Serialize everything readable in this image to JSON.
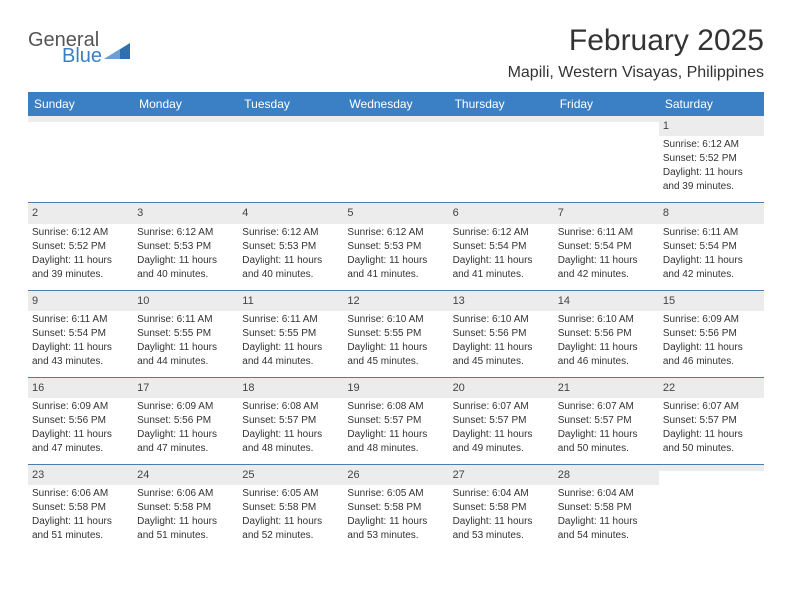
{
  "brand": {
    "line1": "General",
    "line2": "Blue",
    "logo_color": "#2f6fb0"
  },
  "header": {
    "month_title": "February 2025",
    "location": "Mapili, Western Visayas, Philippines"
  },
  "colors": {
    "header_bg": "#3b7fc4",
    "header_text": "#ffffff",
    "date_bar_bg": "#ececec",
    "sep": "#4a7db0",
    "text": "#333333"
  },
  "day_names": [
    "Sunday",
    "Monday",
    "Tuesday",
    "Wednesday",
    "Thursday",
    "Friday",
    "Saturday"
  ],
  "weeks": [
    [
      {
        "date": "",
        "sunrise": "",
        "sunset": "",
        "daylight_l1": "",
        "daylight_l2": ""
      },
      {
        "date": "",
        "sunrise": "",
        "sunset": "",
        "daylight_l1": "",
        "daylight_l2": ""
      },
      {
        "date": "",
        "sunrise": "",
        "sunset": "",
        "daylight_l1": "",
        "daylight_l2": ""
      },
      {
        "date": "",
        "sunrise": "",
        "sunset": "",
        "daylight_l1": "",
        "daylight_l2": ""
      },
      {
        "date": "",
        "sunrise": "",
        "sunset": "",
        "daylight_l1": "",
        "daylight_l2": ""
      },
      {
        "date": "",
        "sunrise": "",
        "sunset": "",
        "daylight_l1": "",
        "daylight_l2": ""
      },
      {
        "date": "1",
        "sunrise": "Sunrise: 6:12 AM",
        "sunset": "Sunset: 5:52 PM",
        "daylight_l1": "Daylight: 11 hours",
        "daylight_l2": "and 39 minutes."
      }
    ],
    [
      {
        "date": "2",
        "sunrise": "Sunrise: 6:12 AM",
        "sunset": "Sunset: 5:52 PM",
        "daylight_l1": "Daylight: 11 hours",
        "daylight_l2": "and 39 minutes."
      },
      {
        "date": "3",
        "sunrise": "Sunrise: 6:12 AM",
        "sunset": "Sunset: 5:53 PM",
        "daylight_l1": "Daylight: 11 hours",
        "daylight_l2": "and 40 minutes."
      },
      {
        "date": "4",
        "sunrise": "Sunrise: 6:12 AM",
        "sunset": "Sunset: 5:53 PM",
        "daylight_l1": "Daylight: 11 hours",
        "daylight_l2": "and 40 minutes."
      },
      {
        "date": "5",
        "sunrise": "Sunrise: 6:12 AM",
        "sunset": "Sunset: 5:53 PM",
        "daylight_l1": "Daylight: 11 hours",
        "daylight_l2": "and 41 minutes."
      },
      {
        "date": "6",
        "sunrise": "Sunrise: 6:12 AM",
        "sunset": "Sunset: 5:54 PM",
        "daylight_l1": "Daylight: 11 hours",
        "daylight_l2": "and 41 minutes."
      },
      {
        "date": "7",
        "sunrise": "Sunrise: 6:11 AM",
        "sunset": "Sunset: 5:54 PM",
        "daylight_l1": "Daylight: 11 hours",
        "daylight_l2": "and 42 minutes."
      },
      {
        "date": "8",
        "sunrise": "Sunrise: 6:11 AM",
        "sunset": "Sunset: 5:54 PM",
        "daylight_l1": "Daylight: 11 hours",
        "daylight_l2": "and 42 minutes."
      }
    ],
    [
      {
        "date": "9",
        "sunrise": "Sunrise: 6:11 AM",
        "sunset": "Sunset: 5:54 PM",
        "daylight_l1": "Daylight: 11 hours",
        "daylight_l2": "and 43 minutes."
      },
      {
        "date": "10",
        "sunrise": "Sunrise: 6:11 AM",
        "sunset": "Sunset: 5:55 PM",
        "daylight_l1": "Daylight: 11 hours",
        "daylight_l2": "and 44 minutes."
      },
      {
        "date": "11",
        "sunrise": "Sunrise: 6:11 AM",
        "sunset": "Sunset: 5:55 PM",
        "daylight_l1": "Daylight: 11 hours",
        "daylight_l2": "and 44 minutes."
      },
      {
        "date": "12",
        "sunrise": "Sunrise: 6:10 AM",
        "sunset": "Sunset: 5:55 PM",
        "daylight_l1": "Daylight: 11 hours",
        "daylight_l2": "and 45 minutes."
      },
      {
        "date": "13",
        "sunrise": "Sunrise: 6:10 AM",
        "sunset": "Sunset: 5:56 PM",
        "daylight_l1": "Daylight: 11 hours",
        "daylight_l2": "and 45 minutes."
      },
      {
        "date": "14",
        "sunrise": "Sunrise: 6:10 AM",
        "sunset": "Sunset: 5:56 PM",
        "daylight_l1": "Daylight: 11 hours",
        "daylight_l2": "and 46 minutes."
      },
      {
        "date": "15",
        "sunrise": "Sunrise: 6:09 AM",
        "sunset": "Sunset: 5:56 PM",
        "daylight_l1": "Daylight: 11 hours",
        "daylight_l2": "and 46 minutes."
      }
    ],
    [
      {
        "date": "16",
        "sunrise": "Sunrise: 6:09 AM",
        "sunset": "Sunset: 5:56 PM",
        "daylight_l1": "Daylight: 11 hours",
        "daylight_l2": "and 47 minutes."
      },
      {
        "date": "17",
        "sunrise": "Sunrise: 6:09 AM",
        "sunset": "Sunset: 5:56 PM",
        "daylight_l1": "Daylight: 11 hours",
        "daylight_l2": "and 47 minutes."
      },
      {
        "date": "18",
        "sunrise": "Sunrise: 6:08 AM",
        "sunset": "Sunset: 5:57 PM",
        "daylight_l1": "Daylight: 11 hours",
        "daylight_l2": "and 48 minutes."
      },
      {
        "date": "19",
        "sunrise": "Sunrise: 6:08 AM",
        "sunset": "Sunset: 5:57 PM",
        "daylight_l1": "Daylight: 11 hours",
        "daylight_l2": "and 48 minutes."
      },
      {
        "date": "20",
        "sunrise": "Sunrise: 6:07 AM",
        "sunset": "Sunset: 5:57 PM",
        "daylight_l1": "Daylight: 11 hours",
        "daylight_l2": "and 49 minutes."
      },
      {
        "date": "21",
        "sunrise": "Sunrise: 6:07 AM",
        "sunset": "Sunset: 5:57 PM",
        "daylight_l1": "Daylight: 11 hours",
        "daylight_l2": "and 50 minutes."
      },
      {
        "date": "22",
        "sunrise": "Sunrise: 6:07 AM",
        "sunset": "Sunset: 5:57 PM",
        "daylight_l1": "Daylight: 11 hours",
        "daylight_l2": "and 50 minutes."
      }
    ],
    [
      {
        "date": "23",
        "sunrise": "Sunrise: 6:06 AM",
        "sunset": "Sunset: 5:58 PM",
        "daylight_l1": "Daylight: 11 hours",
        "daylight_l2": "and 51 minutes."
      },
      {
        "date": "24",
        "sunrise": "Sunrise: 6:06 AM",
        "sunset": "Sunset: 5:58 PM",
        "daylight_l1": "Daylight: 11 hours",
        "daylight_l2": "and 51 minutes."
      },
      {
        "date": "25",
        "sunrise": "Sunrise: 6:05 AM",
        "sunset": "Sunset: 5:58 PM",
        "daylight_l1": "Daylight: 11 hours",
        "daylight_l2": "and 52 minutes."
      },
      {
        "date": "26",
        "sunrise": "Sunrise: 6:05 AM",
        "sunset": "Sunset: 5:58 PM",
        "daylight_l1": "Daylight: 11 hours",
        "daylight_l2": "and 53 minutes."
      },
      {
        "date": "27",
        "sunrise": "Sunrise: 6:04 AM",
        "sunset": "Sunset: 5:58 PM",
        "daylight_l1": "Daylight: 11 hours",
        "daylight_l2": "and 53 minutes."
      },
      {
        "date": "28",
        "sunrise": "Sunrise: 6:04 AM",
        "sunset": "Sunset: 5:58 PM",
        "daylight_l1": "Daylight: 11 hours",
        "daylight_l2": "and 54 minutes."
      },
      {
        "date": "",
        "sunrise": "",
        "sunset": "",
        "daylight_l1": "",
        "daylight_l2": ""
      }
    ]
  ]
}
